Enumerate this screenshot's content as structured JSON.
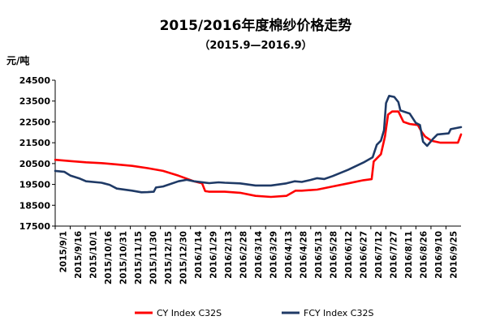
{
  "chart_data": {
    "type": "line",
    "title": "2015/2016年度棉纱价格走势",
    "subtitle": "（2015.9—2016.9）",
    "ylabel": "元/吨",
    "xlabel": "",
    "ylim": [
      17500,
      24500
    ],
    "yticks": [
      "24500",
      "23500",
      "22500",
      "21500",
      "20500",
      "19500",
      "18500",
      "17500"
    ],
    "ytick_values": [
      24500,
      23500,
      22500,
      21500,
      20500,
      19500,
      18500,
      17500
    ],
    "xticks": [
      "2015/9/1",
      "2015/9/16",
      "2015/10/1",
      "2015/10/16",
      "2015/10/31",
      "2015/11/15",
      "2015/11/30",
      "2015/12/15",
      "2015/12/30",
      "2016/1/14",
      "2016/1/29",
      "2016/2/13",
      "2016/2/28",
      "2016/3/14",
      "2016/3/29",
      "2016/4/13",
      "2016/4/28",
      "2016/5/13",
      "2016/5/28",
      "2016/6/12",
      "2016/6/27",
      "2016/7/12",
      "2016/7/27",
      "2016/8/11",
      "2016/8/26",
      "2016/9/10",
      "2016/9/25"
    ],
    "x_range": [
      "2015-09-01",
      "2016-09-30"
    ],
    "grid": false,
    "legend_position": "bottom",
    "series": [
      {
        "name": "CY Index C32S",
        "color": "#ff0000",
        "points": [
          [
            "2015-09-01",
            20680
          ],
          [
            "2015-09-16",
            20620
          ],
          [
            "2015-10-01",
            20560
          ],
          [
            "2015-10-16",
            20520
          ],
          [
            "2015-10-31",
            20460
          ],
          [
            "2015-11-15",
            20390
          ],
          [
            "2015-11-30",
            20280
          ],
          [
            "2015-12-15",
            20150
          ],
          [
            "2015-12-30",
            19920
          ],
          [
            "2016-01-14",
            19650
          ],
          [
            "2016-01-22",
            19550
          ],
          [
            "2016-01-25",
            19180
          ],
          [
            "2016-01-29",
            19150
          ],
          [
            "2016-02-13",
            19150
          ],
          [
            "2016-02-28",
            19100
          ],
          [
            "2016-03-14",
            18950
          ],
          [
            "2016-03-29",
            18900
          ],
          [
            "2016-04-13",
            18950
          ],
          [
            "2016-04-22",
            19200
          ],
          [
            "2016-04-28",
            19200
          ],
          [
            "2016-05-13",
            19250
          ],
          [
            "2016-05-28",
            19400
          ],
          [
            "2016-06-12",
            19550
          ],
          [
            "2016-06-27",
            19700
          ],
          [
            "2016-07-05",
            19750
          ],
          [
            "2016-07-07",
            20600
          ],
          [
            "2016-07-14",
            20950
          ],
          [
            "2016-07-18",
            21800
          ],
          [
            "2016-07-21",
            22850
          ],
          [
            "2016-07-25",
            23000
          ],
          [
            "2016-07-31",
            23000
          ],
          [
            "2016-08-05",
            22500
          ],
          [
            "2016-08-11",
            22400
          ],
          [
            "2016-08-19",
            22350
          ],
          [
            "2016-08-23",
            22000
          ],
          [
            "2016-08-26",
            21800
          ],
          [
            "2016-09-01",
            21600
          ],
          [
            "2016-09-10",
            21500
          ],
          [
            "2016-09-27",
            21500
          ],
          [
            "2016-09-30",
            21900
          ]
        ]
      },
      {
        "name": "FCY Index C32S",
        "color": "#1f3a66",
        "points": [
          [
            "2015-09-01",
            20150
          ],
          [
            "2015-09-10",
            20100
          ],
          [
            "2015-09-16",
            19920
          ],
          [
            "2015-09-25",
            19780
          ],
          [
            "2015-10-01",
            19650
          ],
          [
            "2015-10-16",
            19580
          ],
          [
            "2015-10-24",
            19480
          ],
          [
            "2015-10-31",
            19300
          ],
          [
            "2015-11-15",
            19200
          ],
          [
            "2015-11-24",
            19120
          ],
          [
            "2015-11-30",
            19130
          ],
          [
            "2015-12-06",
            19150
          ],
          [
            "2015-12-08",
            19350
          ],
          [
            "2015-12-15",
            19400
          ],
          [
            "2015-12-30",
            19650
          ],
          [
            "2016-01-07",
            19720
          ],
          [
            "2016-01-14",
            19650
          ],
          [
            "2016-01-29",
            19560
          ],
          [
            "2016-02-07",
            19600
          ],
          [
            "2016-02-13",
            19580
          ],
          [
            "2016-02-28",
            19550
          ],
          [
            "2016-03-14",
            19450
          ],
          [
            "2016-03-29",
            19450
          ],
          [
            "2016-04-13",
            19550
          ],
          [
            "2016-04-21",
            19650
          ],
          [
            "2016-04-28",
            19620
          ],
          [
            "2016-05-07",
            19720
          ],
          [
            "2016-05-13",
            19800
          ],
          [
            "2016-05-20",
            19760
          ],
          [
            "2016-05-28",
            19900
          ],
          [
            "2016-06-12",
            20200
          ],
          [
            "2016-06-27",
            20550
          ],
          [
            "2016-07-06",
            20800
          ],
          [
            "2016-07-10",
            21400
          ],
          [
            "2016-07-14",
            21600
          ],
          [
            "2016-07-17",
            22100
          ],
          [
            "2016-07-19",
            23400
          ],
          [
            "2016-07-22",
            23750
          ],
          [
            "2016-07-27",
            23700
          ],
          [
            "2016-07-31",
            23450
          ],
          [
            "2016-08-02",
            23050
          ],
          [
            "2016-08-11",
            22900
          ],
          [
            "2016-08-17",
            22450
          ],
          [
            "2016-08-21",
            22350
          ],
          [
            "2016-08-24",
            21550
          ],
          [
            "2016-08-28",
            21350
          ],
          [
            "2016-09-03",
            21700
          ],
          [
            "2016-09-07",
            21900
          ],
          [
            "2016-09-18",
            21950
          ],
          [
            "2016-09-20",
            22150
          ],
          [
            "2016-09-30",
            22250
          ]
        ]
      }
    ]
  }
}
